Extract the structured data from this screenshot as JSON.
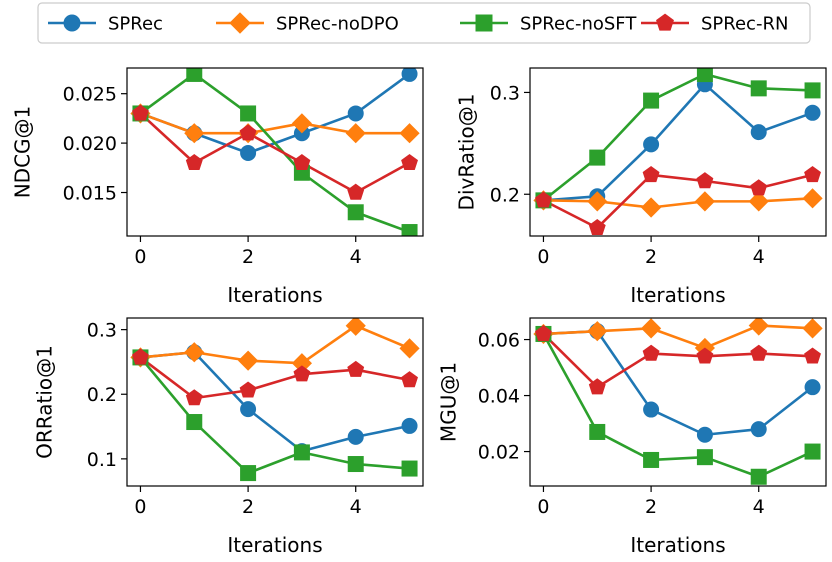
{
  "legend": {
    "entries": [
      {
        "label": "SPRec",
        "color": "#1f77b4",
        "marker": "circle"
      },
      {
        "label": "SPRec-noDPO",
        "color": "#ff7f0e",
        "marker": "diamond"
      },
      {
        "label": "SPRec-noSFT",
        "color": "#2ca02c",
        "marker": "square"
      },
      {
        "label": "SPRec-RN",
        "color": "#d62728",
        "marker": "pentagon"
      }
    ]
  },
  "chart_data": [
    {
      "type": "line",
      "ylabel": "NDCG@1",
      "xlabel": "Iterations",
      "x": [
        0,
        1,
        2,
        3,
        4,
        5
      ],
      "xticks": [
        0,
        2,
        4
      ],
      "xlim": [
        -0.25,
        5.25
      ],
      "ylim": [
        0.0106,
        0.0276
      ],
      "yticks": [
        0.015,
        0.02,
        0.025
      ],
      "ytick_labels": [
        "0.015",
        "0.020",
        "0.025"
      ],
      "series": [
        {
          "name": "SPRec",
          "values": [
            0.023,
            0.021,
            0.019,
            0.021,
            0.023,
            0.027
          ]
        },
        {
          "name": "SPRec-noDPO",
          "values": [
            0.023,
            0.021,
            0.021,
            0.022,
            0.021,
            0.021
          ]
        },
        {
          "name": "SPRec-noSFT",
          "values": [
            0.023,
            0.027,
            0.023,
            0.017,
            0.013,
            0.011
          ]
        },
        {
          "name": "SPRec-RN",
          "values": [
            0.023,
            0.018,
            0.021,
            0.018,
            0.015,
            0.018
          ]
        }
      ]
    },
    {
      "type": "line",
      "ylabel": "DivRatio@1",
      "xlabel": "Iterations",
      "x": [
        0,
        1,
        2,
        3,
        4,
        5
      ],
      "xticks": [
        0,
        2,
        4
      ],
      "xlim": [
        -0.25,
        5.25
      ],
      "ylim": [
        0.159,
        0.324
      ],
      "yticks": [
        0.2,
        0.3
      ],
      "ytick_labels": [
        "0.2",
        "0.3"
      ],
      "series": [
        {
          "name": "SPRec",
          "values": [
            0.194,
            0.198,
            0.249,
            0.308,
            0.261,
            0.28
          ]
        },
        {
          "name": "SPRec-noDPO",
          "values": [
            0.194,
            0.193,
            0.187,
            0.193,
            0.193,
            0.196
          ]
        },
        {
          "name": "SPRec-noSFT",
          "values": [
            0.194,
            0.236,
            0.292,
            0.318,
            0.304,
            0.302
          ]
        },
        {
          "name": "SPRec-RN",
          "values": [
            0.194,
            0.167,
            0.219,
            0.213,
            0.206,
            0.219
          ]
        }
      ]
    },
    {
      "type": "line",
      "ylabel": "ORRatio@1",
      "xlabel": "Iterations",
      "x": [
        0,
        1,
        2,
        3,
        4,
        5
      ],
      "xticks": [
        0,
        2,
        4
      ],
      "xlim": [
        -0.25,
        5.25
      ],
      "ylim": [
        0.058,
        0.318
      ],
      "yticks": [
        0.1,
        0.2,
        0.3
      ],
      "ytick_labels": [
        "0.1",
        "0.2",
        "0.3"
      ],
      "series": [
        {
          "name": "SPRec",
          "values": [
            0.257,
            0.265,
            0.177,
            0.112,
            0.134,
            0.151
          ]
        },
        {
          "name": "SPRec-noDPO",
          "values": [
            0.257,
            0.265,
            0.252,
            0.248,
            0.306,
            0.271
          ]
        },
        {
          "name": "SPRec-noSFT",
          "values": [
            0.257,
            0.157,
            0.078,
            0.11,
            0.092,
            0.085
          ]
        },
        {
          "name": "SPRec-RN",
          "values": [
            0.257,
            0.194,
            0.206,
            0.231,
            0.238,
            0.222
          ]
        }
      ]
    },
    {
      "type": "line",
      "ylabel": "MGU@1",
      "xlabel": "Iterations",
      "x": [
        0,
        1,
        2,
        3,
        4,
        5
      ],
      "xticks": [
        0,
        2,
        4
      ],
      "xlim": [
        -0.25,
        5.25
      ],
      "ylim": [
        0.0077,
        0.0677
      ],
      "yticks": [
        0.02,
        0.04,
        0.06
      ],
      "ytick_labels": [
        "0.02",
        "0.04",
        "0.06"
      ],
      "series": [
        {
          "name": "SPRec",
          "values": [
            0.062,
            0.063,
            0.035,
            0.026,
            0.028,
            0.043
          ]
        },
        {
          "name": "SPRec-noDPO",
          "values": [
            0.062,
            0.063,
            0.064,
            0.057,
            0.065,
            0.064
          ]
        },
        {
          "name": "SPRec-noSFT",
          "values": [
            0.062,
            0.027,
            0.017,
            0.018,
            0.011,
            0.02
          ]
        },
        {
          "name": "SPRec-RN",
          "values": [
            0.062,
            0.043,
            0.055,
            0.054,
            0.055,
            0.054
          ]
        }
      ]
    }
  ]
}
